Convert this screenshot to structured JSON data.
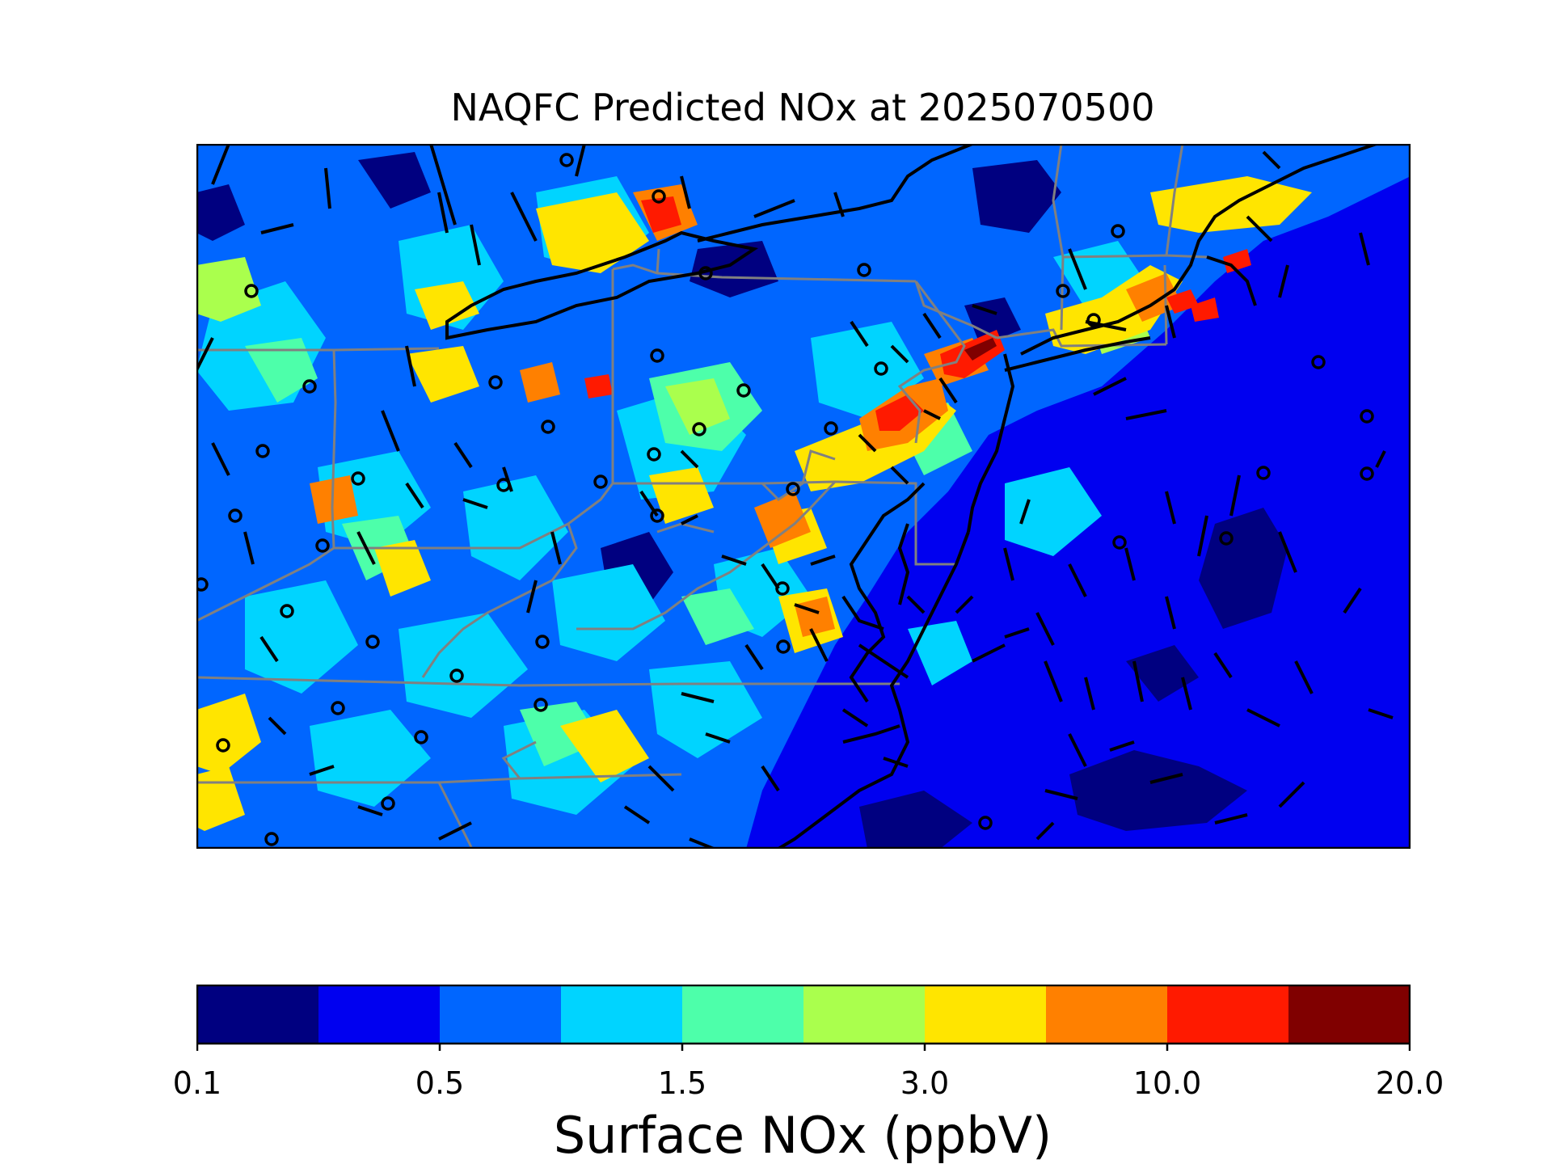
{
  "title": "NAQFC Predicted NOx at 2025070500",
  "colorbar": {
    "label": "Surface NOx (ppbV)",
    "ticks": [
      "0.1",
      "0.5",
      "1.5",
      "3.0",
      "10.0",
      "20.0"
    ],
    "colors": [
      "#000080",
      "#0000f0",
      "#0066ff",
      "#00d4ff",
      "#4dffaa",
      "#aaff4d",
      "#ffe500",
      "#ff8000",
      "#ff1a00",
      "#800000"
    ]
  },
  "map": {
    "region": "US Mid-Atlantic and Northeast",
    "background_color": "#0000f0"
  }
}
